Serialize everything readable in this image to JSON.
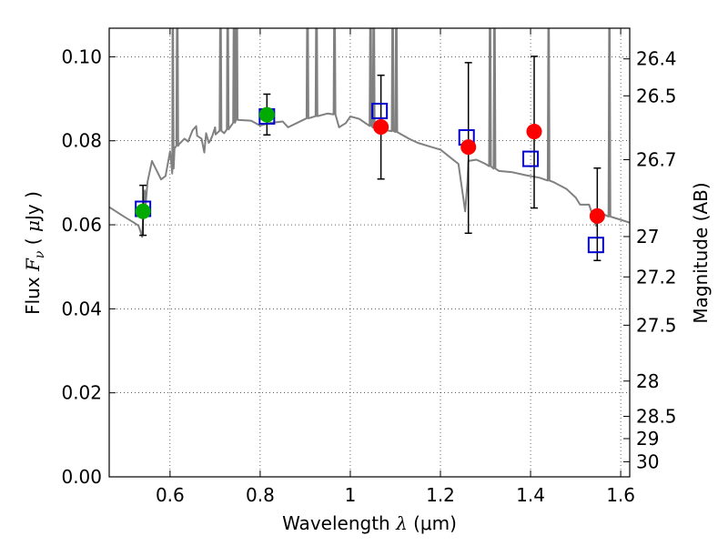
{
  "chart_data": {
    "type": "scatter",
    "xlabel": {
      "prefix": "Wavelength  ",
      "symbol": "λ",
      "suffix": " (μm)"
    },
    "ylabel": {
      "prefix": "Flux  ",
      "symbol": "F",
      "subscript": "ν",
      "middle": "  ( ",
      "unit_symbol": "μ",
      "suffix": "Jy )"
    },
    "y2label": "Magnitude (AB)",
    "xlim": [
      0.465,
      1.62
    ],
    "ylim": [
      0.0,
      0.1068
    ],
    "xticks": [
      0.6,
      0.8,
      1.0,
      1.2,
      1.4,
      1.6
    ],
    "xtick_labels": [
      "0.6",
      "0.8",
      "1",
      "1.2",
      "1.4",
      "1.6"
    ],
    "yticks": [
      0.0,
      0.02,
      0.04,
      0.06,
      0.08,
      0.1
    ],
    "ytick_labels": [
      "0.00",
      "0.02",
      "0.04",
      "0.06",
      "0.08",
      "0.10"
    ],
    "y2ticks": [
      {
        "label": "26.4",
        "flux": 0.0995
      },
      {
        "label": "26.5",
        "flux": 0.0907
      },
      {
        "label": "26.7",
        "flux": 0.0755
      },
      {
        "label": "27",
        "flux": 0.0572
      },
      {
        "label": "27.2",
        "flux": 0.0476
      },
      {
        "label": "27.5",
        "flux": 0.0361
      },
      {
        "label": "28",
        "flux": 0.0228
      },
      {
        "label": "28.5",
        "flux": 0.0144
      },
      {
        "label": "29",
        "flux": 0.0091
      },
      {
        "label": "30",
        "flux": 0.0036
      }
    ],
    "grid": true,
    "colors": {
      "spectrum": "#808080",
      "green": "#00aa00",
      "red": "#ff0000",
      "model": "#0000cc",
      "errorbar": "#000000"
    },
    "series": [
      {
        "name": "SED model spectrum",
        "type": "line",
        "x": [
          0.465,
          0.48,
          0.5,
          0.52,
          0.53,
          0.535,
          0.54,
          0.545,
          0.55,
          0.56,
          0.58,
          0.585,
          0.59,
          0.6,
          0.605,
          0.61,
          0.62,
          0.64,
          0.65,
          0.66,
          0.67,
          0.68,
          0.69,
          0.7,
          0.72,
          0.75,
          0.78,
          0.8,
          0.82,
          0.85,
          0.9,
          0.95,
          1.0,
          1.02,
          1.05,
          1.08,
          1.1,
          1.13,
          1.15,
          1.18,
          1.2,
          1.22,
          1.24,
          1.26,
          1.28,
          1.3,
          1.33,
          1.36,
          1.39,
          1.42,
          1.45,
          1.48,
          1.5,
          1.53,
          1.55,
          1.57,
          1.6,
          1.62
        ],
        "y": [
          0.0642,
          0.0632,
          0.0618,
          0.0605,
          0.0598,
          0.0582,
          0.0605,
          0.0635,
          0.0702,
          0.0752,
          0.0708,
          0.0712,
          0.0716,
          0.0775,
          0.0722,
          0.0782,
          0.0792,
          0.0798,
          0.0825,
          0.0812,
          0.0805,
          0.0818,
          0.0802,
          0.0832,
          0.0818,
          0.0852,
          0.0848,
          0.0836,
          0.0842,
          0.0846,
          0.0852,
          0.0865,
          0.0858,
          0.0852,
          0.0832,
          0.0825,
          0.0822,
          0.0805,
          0.0795,
          0.0785,
          0.0779,
          0.0762,
          0.0745,
          0.0702,
          0.0755,
          0.0745,
          0.0728,
          0.0725,
          0.0718,
          0.0712,
          0.0702,
          0.0685,
          0.0665,
          0.0648,
          0.0632,
          0.0621,
          0.0612,
          0.0605
        ],
        "spikes": [
          {
            "x": 0.538,
            "y": 0.0571
          },
          {
            "x": 0.544,
            "y": 0.0682
          },
          {
            "x": 0.632,
            "y": 0.0805
          },
          {
            "x": 0.658,
            "y": 0.0835
          },
          {
            "x": 0.676,
            "y": 0.0772
          },
          {
            "x": 0.686,
            "y": 0.0795
          },
          {
            "x": 0.694,
            "y": 0.0812
          },
          {
            "x": 0.701,
            "y": 0.0815
          },
          {
            "x": 0.862,
            "y": 0.0832
          },
          {
            "x": 0.975,
            "y": 0.0832
          },
          {
            "x": 0.99,
            "y": 0.0842
          },
          {
            "x": 1.255,
            "y": 0.0632
          },
          {
            "x": 1.262,
            "y": 0.0752
          },
          {
            "x": 1.51,
            "y": 0.0648
          },
          {
            "x": 1.545,
            "y": 0.0598
          }
        ],
        "emission_lines": [
          0.606,
          0.616,
          0.712,
          0.728,
          0.742,
          0.748,
          0.905,
          0.925,
          0.965,
          1.045,
          1.052,
          1.094,
          1.102,
          1.31,
          1.32,
          1.44,
          1.575
        ]
      },
      {
        "name": "Green photometry",
        "type": "errorbar",
        "x": [
          0.54,
          0.815
        ],
        "y": [
          0.0632,
          0.0862
        ],
        "yerr_low": [
          0.0057,
          0.0048
        ],
        "yerr_high": [
          0.0062,
          0.0049
        ]
      },
      {
        "name": "Red photometry",
        "type": "errorbar",
        "x": [
          1.068,
          1.262,
          1.408,
          1.548
        ],
        "y": [
          0.0833,
          0.0785,
          0.0822,
          0.0621
        ],
        "yerr_low": [
          0.0124,
          0.0205,
          0.0182,
          0.0106
        ],
        "yerr_high": [
          0.0123,
          0.0201,
          0.0179,
          0.0114
        ]
      },
      {
        "name": "Model fluxes",
        "type": "scatter",
        "marker": "open-square",
        "x": [
          0.54,
          0.815,
          1.065,
          1.258,
          1.4,
          1.545
        ],
        "y": [
          0.0638,
          0.0858,
          0.0871,
          0.0808,
          0.0757,
          0.0552
        ]
      }
    ]
  }
}
